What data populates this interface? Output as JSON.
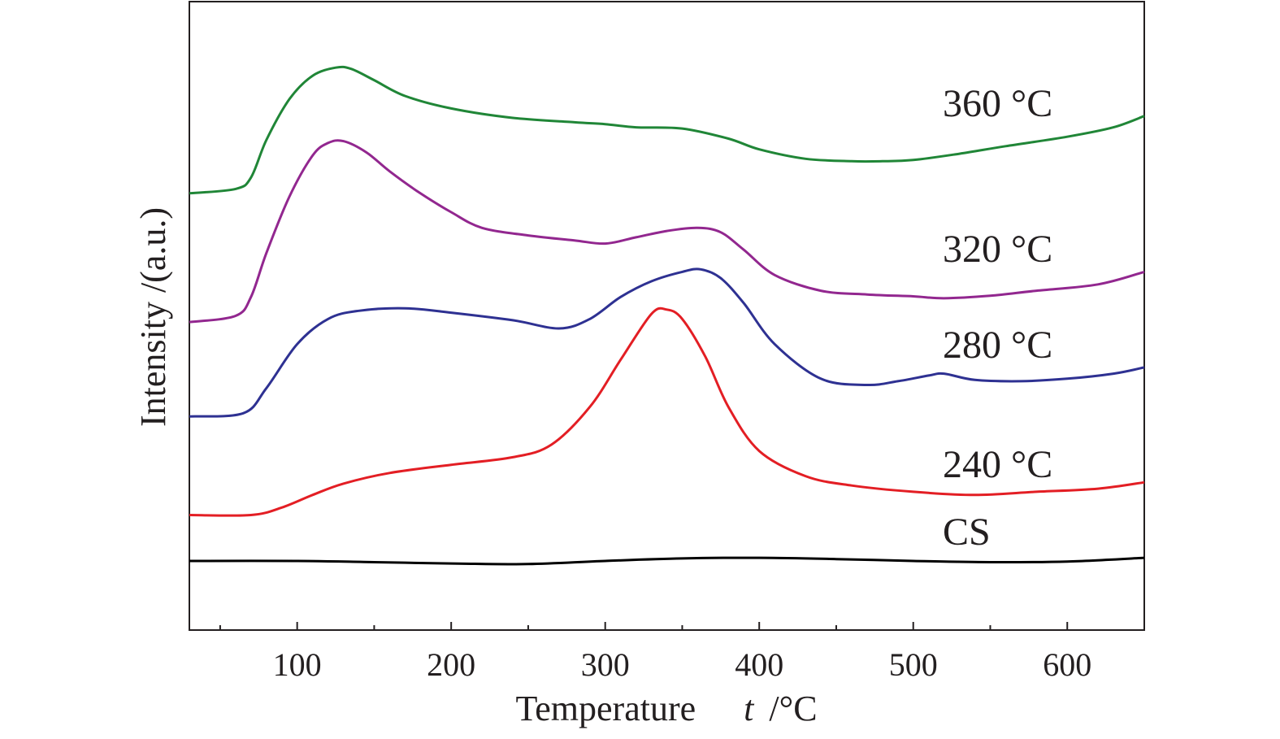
{
  "chart_data": {
    "type": "line",
    "title": "",
    "xlabel": "Temperature",
    "xlabel_symbol": "t",
    "xlabel_unit": "/°C",
    "ylabel": "Intensity /(a.u.)",
    "xlim": [
      30,
      650
    ],
    "ylim": [
      0,
      100
    ],
    "grid": false,
    "x_ticks": [
      100,
      200,
      300,
      400,
      500,
      600
    ],
    "x_tick_labels": [
      "100",
      "200",
      "300",
      "400",
      "500",
      "600"
    ],
    "x_minor_ticks": [
      50,
      150,
      250,
      350,
      450,
      550
    ],
    "series": [
      {
        "name": "CS",
        "label": "CS",
        "color": "#000000",
        "x": [
          30,
          100,
          150,
          200,
          250,
          300,
          350,
          400,
          450,
          500,
          550,
          600,
          650
        ],
        "y": [
          11.0,
          11.0,
          10.8,
          10.6,
          10.5,
          11.0,
          11.4,
          11.5,
          11.3,
          11.0,
          10.8,
          10.9,
          11.5
        ]
      },
      {
        "name": "240 °C",
        "label": "240 °C",
        "color": "#e31e24",
        "x": [
          30,
          70,
          90,
          110,
          130,
          160,
          200,
          240,
          265,
          290,
          310,
          330,
          340,
          350,
          365,
          380,
          400,
          430,
          460,
          500,
          540,
          580,
          620,
          650
        ],
        "y": [
          18.3,
          18.3,
          19.5,
          21.5,
          23.3,
          25.0,
          26.3,
          27.5,
          29.5,
          35.5,
          43.0,
          50.3,
          51.0,
          49.5,
          43.5,
          35.5,
          28.5,
          24.5,
          23.0,
          22.0,
          21.5,
          22.0,
          22.5,
          23.5
        ]
      },
      {
        "name": "280 °C",
        "label": "280 °C",
        "color": "#2e3192",
        "x": [
          30,
          65,
          80,
          100,
          120,
          140,
          170,
          200,
          240,
          270,
          290,
          310,
          330,
          350,
          362,
          375,
          390,
          410,
          440,
          470,
          490,
          510,
          520,
          540,
          570,
          600,
          630,
          650
        ],
        "y": [
          34.0,
          34.5,
          38.5,
          45.5,
          49.5,
          50.8,
          51.2,
          50.5,
          49.3,
          48.0,
          49.5,
          53.0,
          55.5,
          57.0,
          57.4,
          56.0,
          52.0,
          45.5,
          40.0,
          39.0,
          39.6,
          40.5,
          40.8,
          39.8,
          39.6,
          40.0,
          40.8,
          41.8
        ]
      },
      {
        "name": "320 °C",
        "label": "320 °C",
        "color": "#92278f",
        "x": [
          30,
          60,
          70,
          80,
          95,
          110,
          120,
          130,
          145,
          160,
          180,
          200,
          220,
          250,
          280,
          300,
          320,
          340,
          360,
          375,
          390,
          410,
          440,
          470,
          500,
          520,
          550,
          580,
          620,
          650
        ],
        "y": [
          49.0,
          50.0,
          53.0,
          60.0,
          69.0,
          75.5,
          77.5,
          77.8,
          76.0,
          73.0,
          69.5,
          66.5,
          64.0,
          62.8,
          62.0,
          61.5,
          62.5,
          63.5,
          64.0,
          63.3,
          60.5,
          56.5,
          54.0,
          53.4,
          53.1,
          52.8,
          53.2,
          54.0,
          55.0,
          57.0
        ]
      },
      {
        "name": "360 °C",
        "label": "360 °C",
        "color": "#208637",
        "x": [
          30,
          60,
          70,
          80,
          95,
          110,
          125,
          135,
          150,
          170,
          200,
          240,
          280,
          300,
          320,
          350,
          380,
          400,
          430,
          460,
          480,
          500,
          530,
          560,
          600,
          630,
          650
        ],
        "y": [
          69.5,
          70.2,
          72.0,
          78.0,
          84.5,
          88.2,
          89.5,
          89.3,
          87.5,
          85.0,
          83.0,
          81.5,
          80.8,
          80.5,
          80.0,
          79.8,
          78.2,
          76.5,
          75.0,
          74.6,
          74.6,
          74.8,
          75.8,
          77.0,
          78.5,
          80.0,
          81.8
        ]
      }
    ]
  }
}
